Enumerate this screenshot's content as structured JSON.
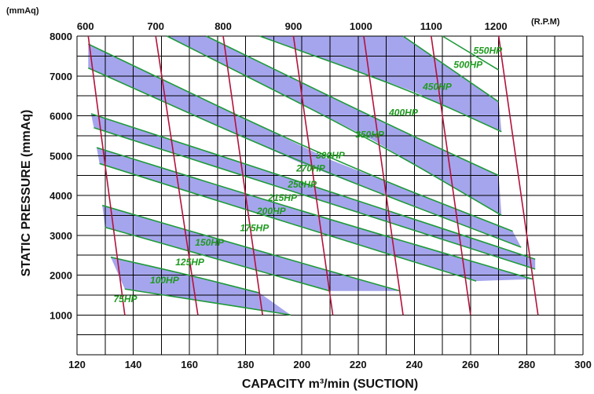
{
  "chart_data": {
    "type": "line",
    "title": "",
    "xlabel": "CAPACITY m³/min (SUCTION)",
    "ylabel": "STATIC PRESSURE (mmAq)",
    "y_unit_label": "(mmAq)",
    "rpm_unit_label": "(R.P.M)",
    "xlim": [
      120,
      300
    ],
    "ylim": [
      0,
      8000
    ],
    "x_ticks": [
      120,
      140,
      160,
      180,
      200,
      220,
      240,
      260,
      280,
      300
    ],
    "y_ticks": [
      1000,
      2000,
      3000,
      4000,
      5000,
      6000,
      7000,
      8000
    ],
    "grid": true,
    "rpm_series": [
      {
        "name": "600",
        "label_x": 123,
        "points": [
          [
            124,
            8000
          ],
          [
            137,
            1000
          ]
        ]
      },
      {
        "name": "700",
        "label_x": 148,
        "points": [
          [
            148,
            8000
          ],
          [
            163,
            1000
          ]
        ]
      },
      {
        "name": "800",
        "label_x": 172,
        "points": [
          [
            172,
            8000
          ],
          [
            186,
            1000
          ]
        ]
      },
      {
        "name": "900",
        "label_x": 197,
        "points": [
          [
            197,
            8000
          ],
          [
            211,
            1000
          ]
        ]
      },
      {
        "name": "1000",
        "label_x": 221,
        "points": [
          [
            222,
            8000
          ],
          [
            236,
            1000
          ]
        ]
      },
      {
        "name": "1100",
        "label_x": 246,
        "points": [
          [
            246,
            8000
          ],
          [
            260,
            1000
          ]
        ]
      },
      {
        "name": "1200",
        "label_x": 269,
        "points": [
          [
            270,
            8000
          ],
          [
            284,
            1000
          ]
        ]
      }
    ],
    "hp_series": [
      {
        "name": "75HP",
        "label_at": [
          133,
          1320
        ],
        "points": [
          [
            137,
            1650
          ],
          [
            160,
            1400
          ],
          [
            196,
            1000
          ]
        ]
      },
      {
        "name": "100HP",
        "label_at": [
          146,
          1790
        ],
        "points": [
          [
            132,
            2450
          ],
          [
            160,
            2000
          ],
          [
            185,
            1550
          ]
        ]
      },
      {
        "name": "125HP",
        "label_at": [
          155,
          2250
        ],
        "points": [
          [
            130,
            3200
          ],
          [
            170,
            2400
          ],
          [
            210,
            1600
          ]
        ]
      },
      {
        "name": "150HP",
        "label_at": [
          162,
          2740
        ],
        "points": [
          [
            129,
            3750
          ],
          [
            175,
            2800
          ],
          [
            235,
            1600
          ]
        ]
      },
      {
        "name": "175HP",
        "label_at": [
          178,
          3100
        ],
        "points": [
          [
            128,
            4800
          ],
          [
            200,
            3200
          ],
          [
            262,
            1850
          ]
        ]
      },
      {
        "name": "200HP",
        "label_at": [
          184,
          3530
        ],
        "points": [
          [
            127,
            5200
          ],
          [
            200,
            3600
          ],
          [
            282,
            1900
          ]
        ]
      },
      {
        "name": "215HP",
        "label_at": [
          188,
          3860
        ],
        "points": [
          [
            126,
            5700
          ],
          [
            210,
            3800
          ],
          [
            283,
            2150
          ]
        ]
      },
      {
        "name": "250HP",
        "label_at": [
          195,
          4200
        ],
        "points": [
          [
            125,
            6050
          ],
          [
            210,
            4100
          ],
          [
            283,
            2400
          ]
        ]
      },
      {
        "name": "270HP",
        "label_at": [
          198,
          4600
        ],
        "points": [
          [
            124,
            7200
          ],
          [
            200,
            4800
          ],
          [
            278,
            2700
          ]
        ]
      },
      {
        "name": "300HP",
        "label_at": [
          205,
          4930
        ],
        "points": [
          [
            124,
            7800
          ],
          [
            210,
            4900
          ],
          [
            275,
            3100
          ]
        ]
      },
      {
        "name": "350HP",
        "label_at": [
          219,
          5450
        ],
        "points": [
          [
            152,
            8000
          ],
          [
            225,
            5400
          ],
          [
            271,
            3500
          ]
        ]
      },
      {
        "name": "400HP",
        "label_at": [
          231,
          6000
        ],
        "points": [
          [
            166,
            8000
          ],
          [
            230,
            5800
          ],
          [
            270,
            4500
          ]
        ]
      },
      {
        "name": "450HP",
        "label_at": [
          243,
          6650
        ],
        "points": [
          [
            185,
            8000
          ],
          [
            240,
            6600
          ],
          [
            271,
            5600
          ]
        ]
      },
      {
        "name": "500HP",
        "label_at": [
          254,
          7200
        ],
        "points": [
          [
            236,
            8000
          ],
          [
            270,
            6350
          ]
        ]
      },
      {
        "name": "550HP",
        "label_at": [
          261,
          7560
        ],
        "points": [
          [
            250,
            8000
          ],
          [
            270,
            7150
          ]
        ]
      }
    ]
  }
}
